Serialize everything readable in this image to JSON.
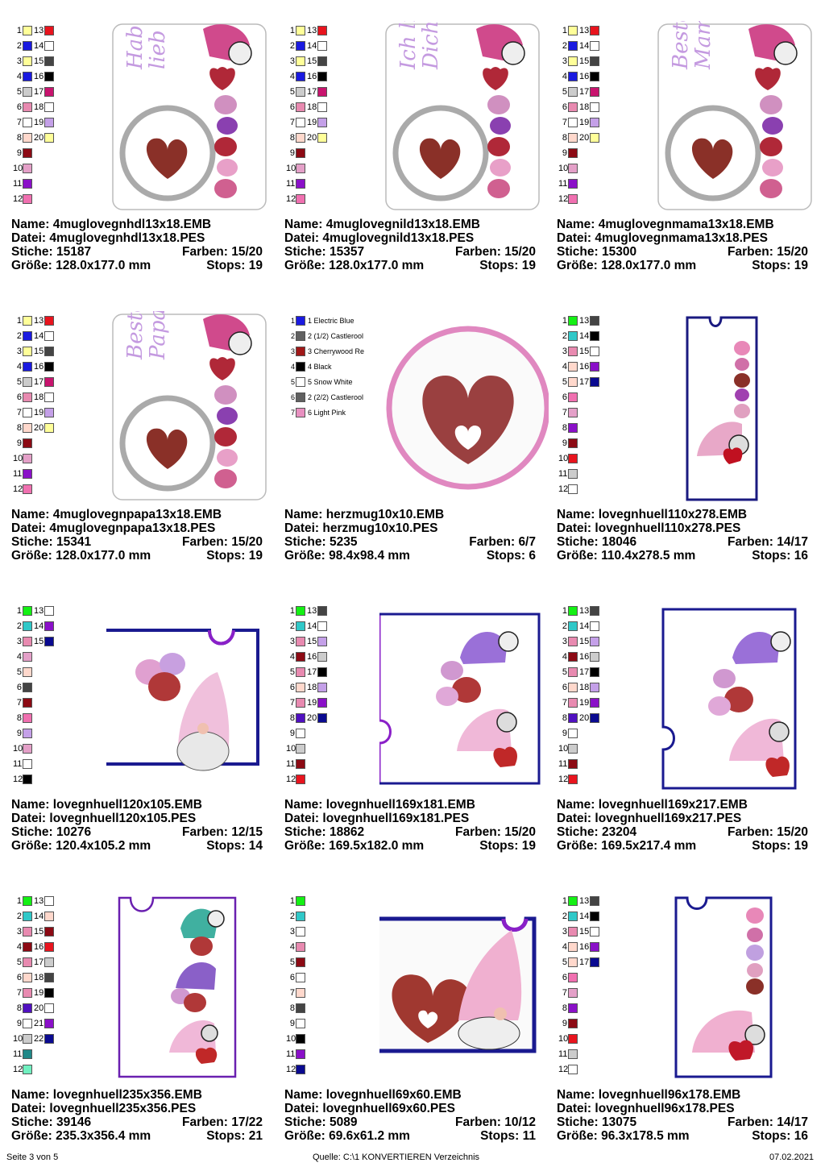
{
  "palette": {
    "red": "#e8141e",
    "blue": "#1a1ae0",
    "yellow": "#ffff99",
    "gray": "#444444",
    "black": "#000000",
    "lightgray": "#cccccc",
    "magenta": "#c8146e",
    "pink": "#e88ab0",
    "white": "#ffffff",
    "lavender": "#c4a0e8",
    "peach": "#ffd8cc",
    "darkred": "#8c0a14",
    "lightpink": "#e4a0c8",
    "purple": "#8a10c8",
    "hotpink": "#f070b0",
    "green": "#14f014",
    "teal": "#30c8c8",
    "navy": "#0a0a90",
    "darkgray": "#444444",
    "teal2": "#208888",
    "mint": "#70f0c0",
    "violet": "#5010c0",
    "castle": "#606060",
    "cherry": "#a01818",
    "lpink": "#e890c0"
  },
  "designs": [
    {
      "name_label": "Name:",
      "name": "4muglovegnhdl13x18.EMB",
      "file_label": "Datei:",
      "file": "4muglovegnhdl13x18.PES",
      "stitch_label": "Stiche:",
      "stitches": "15187",
      "color_label": "Farben:",
      "colors": "15/20",
      "size_label": "Größe:",
      "size": "128.0x177.0 mm",
      "stop_label": "Stops:",
      "stops": "19",
      "text": "Hab Dich lieb",
      "text1": "Hab Dich",
      "text2": "lieb",
      "swatches": [
        [
          "1",
          "yellow",
          "13",
          "red"
        ],
        [
          "2",
          "blue",
          "14",
          "white"
        ],
        [
          "3",
          "yellow",
          "15",
          "gray"
        ],
        [
          "4",
          "blue",
          "16",
          "black"
        ],
        [
          "5",
          "lightgray",
          "17",
          "magenta"
        ],
        [
          "6",
          "pink",
          "18",
          "white"
        ],
        [
          "7",
          "white",
          "19",
          "lavender"
        ],
        [
          "8",
          "peach",
          "20",
          "yellow"
        ],
        [
          "9",
          "darkred"
        ],
        [
          "10",
          "lightpink"
        ],
        [
          "11",
          "purple"
        ],
        [
          "12",
          "hotpink"
        ]
      ]
    },
    {
      "name_label": "Name:",
      "name": "4muglovegnild13x18.EMB",
      "file_label": "Datei:",
      "file": "4muglovegnild13x18.PES",
      "stitch_label": "Stiche:",
      "stitches": "15357",
      "color_label": "Farben:",
      "colors": "15/20",
      "size_label": "Größe:",
      "size": "128.0x177.0 mm",
      "stop_label": "Stops:",
      "stops": "19",
      "text1": "Ich liebe",
      "text2": "Dich",
      "swatches": [
        [
          "1",
          "yellow",
          "13",
          "red"
        ],
        [
          "2",
          "blue",
          "14",
          "white"
        ],
        [
          "3",
          "yellow",
          "15",
          "gray"
        ],
        [
          "4",
          "blue",
          "16",
          "black"
        ],
        [
          "5",
          "lightgray",
          "17",
          "magenta"
        ],
        [
          "6",
          "pink",
          "18",
          "white"
        ],
        [
          "7",
          "white",
          "19",
          "lavender"
        ],
        [
          "8",
          "peach",
          "20",
          "yellow"
        ],
        [
          "9",
          "darkred"
        ],
        [
          "10",
          "lightpink"
        ],
        [
          "11",
          "purple"
        ],
        [
          "12",
          "hotpink"
        ]
      ]
    },
    {
      "name_label": "Name:",
      "name": "4muglovegnmama13x18.EMB",
      "file_label": "Datei:",
      "file": "4muglovegnmama13x18.PES",
      "stitch_label": "Stiche:",
      "stitches": "15300",
      "color_label": "Farben:",
      "colors": "15/20",
      "size_label": "Größe:",
      "size": "128.0x177.0 mm",
      "stop_label": "Stops:",
      "stops": "19",
      "text1": "Beste",
      "text2": "Mama",
      "swatches": [
        [
          "1",
          "yellow",
          "13",
          "red"
        ],
        [
          "2",
          "blue",
          "14",
          "white"
        ],
        [
          "3",
          "yellow",
          "15",
          "gray"
        ],
        [
          "4",
          "blue",
          "16",
          "black"
        ],
        [
          "5",
          "lightgray",
          "17",
          "magenta"
        ],
        [
          "6",
          "pink",
          "18",
          "white"
        ],
        [
          "7",
          "white",
          "19",
          "lavender"
        ],
        [
          "8",
          "peach",
          "20",
          "yellow"
        ],
        [
          "9",
          "darkred"
        ],
        [
          "10",
          "lightpink"
        ],
        [
          "11",
          "purple"
        ],
        [
          "12",
          "hotpink"
        ]
      ]
    },
    {
      "name_label": "Name:",
      "name": "4muglovegnpapa13x18.EMB",
      "file_label": "Datei:",
      "file": "4muglovegnpapa13x18.PES",
      "stitch_label": "Stiche:",
      "stitches": "15341",
      "color_label": "Farben:",
      "colors": "15/20",
      "size_label": "Größe:",
      "size": "128.0x177.0 mm",
      "stop_label": "Stops:",
      "stops": "19",
      "text1": "Bester",
      "text2": "Papa",
      "swatches": [
        [
          "1",
          "yellow",
          "13",
          "red"
        ],
        [
          "2",
          "blue",
          "14",
          "white"
        ],
        [
          "3",
          "yellow",
          "15",
          "gray"
        ],
        [
          "4",
          "blue",
          "16",
          "black"
        ],
        [
          "5",
          "lightgray",
          "17",
          "magenta"
        ],
        [
          "6",
          "pink",
          "18",
          "white"
        ],
        [
          "7",
          "white",
          "19",
          "lavender"
        ],
        [
          "8",
          "peach",
          "20",
          "yellow"
        ],
        [
          "9",
          "darkred"
        ],
        [
          "10",
          "lightpink"
        ],
        [
          "11",
          "purple"
        ],
        [
          "12",
          "hotpink"
        ]
      ]
    },
    {
      "name_label": "Name:",
      "name": "herzmug10x10.EMB",
      "file_label": "Datei:",
      "file": "herzmug10x10.PES",
      "stitch_label": "Stiche:",
      "stitches": "5235",
      "color_label": "Farben:",
      "colors": "6/7",
      "size_label": "Größe:",
      "size": "98.4x98.4 mm",
      "stop_label": "Stops:",
      "stops": "6",
      "legend": [
        [
          "1",
          "blue",
          "1 Electric Blue"
        ],
        [
          "2",
          "castle",
          "2 (1/2) Castlerool"
        ],
        [
          "3",
          "cherry",
          "3 Cherrywood Re"
        ],
        [
          "4",
          "black",
          "4 Black"
        ],
        [
          "5",
          "white",
          "5 Snow White"
        ],
        [
          "6",
          "castle",
          "2 (2/2) Castlerool"
        ],
        [
          "7",
          "lpink",
          "6 Light Pink"
        ]
      ]
    },
    {
      "name_label": "Name:",
      "name": "lovegnhuell110x278.EMB",
      "file_label": "Datei:",
      "file": "lovegnhuell110x278.PES",
      "stitch_label": "Stiche:",
      "stitches": "18046",
      "color_label": "Farben:",
      "colors": "14/17",
      "size_label": "Größe:",
      "size": "110.4x278.5 mm",
      "stop_label": "Stops:",
      "stops": "16",
      "swatches": [
        [
          "1",
          "green",
          "13",
          "darkgray"
        ],
        [
          "2",
          "teal",
          "14",
          "black"
        ],
        [
          "3",
          "pink",
          "15",
          "white"
        ],
        [
          "4",
          "peach",
          "16",
          "purple"
        ],
        [
          "5",
          "peach",
          "17",
          "navy"
        ],
        [
          "6",
          "hotpink"
        ],
        [
          "7",
          "lightpink"
        ],
        [
          "8",
          "purple"
        ],
        [
          "9",
          "darkred"
        ],
        [
          "10",
          "red"
        ],
        [
          "11",
          "lightgray"
        ],
        [
          "12",
          "white"
        ]
      ]
    },
    {
      "name_label": "Name:",
      "name": "lovegnhuell120x105.EMB",
      "file_label": "Datei:",
      "file": "lovegnhuell120x105.PES",
      "stitch_label": "Stiche:",
      "stitches": "10276",
      "color_label": "Farben:",
      "colors": "12/15",
      "size_label": "Größe:",
      "size": "120.4x105.2 mm",
      "stop_label": "Stops:",
      "stops": "14",
      "swatches": [
        [
          "1",
          "green",
          "13",
          "white"
        ],
        [
          "2",
          "teal",
          "14",
          "purple"
        ],
        [
          "3",
          "pink",
          "15",
          "navy"
        ],
        [
          "4",
          "lightpink"
        ],
        [
          "5",
          "peach"
        ],
        [
          "6",
          "darkgray"
        ],
        [
          "7",
          "darkred"
        ],
        [
          "8",
          "hotpink"
        ],
        [
          "9",
          "lavender"
        ],
        [
          "10",
          "lightpink"
        ],
        [
          "11",
          "white"
        ],
        [
          "12",
          "black"
        ]
      ]
    },
    {
      "name_label": "Name:",
      "name": "lovegnhuell169x181.EMB",
      "file_label": "Datei:",
      "file": "lovegnhuell169x181.PES",
      "stitch_label": "Stiche:",
      "stitches": "18862",
      "color_label": "Farben:",
      "colors": "15/20",
      "size_label": "Größe:",
      "size": "169.5x182.0 mm",
      "stop_label": "Stops:",
      "stops": "19",
      "swatches": [
        [
          "1",
          "green",
          "13",
          "darkgray"
        ],
        [
          "2",
          "teal",
          "14",
          "white"
        ],
        [
          "3",
          "pink",
          "15",
          "lavender"
        ],
        [
          "4",
          "darkred",
          "16",
          "lightgray"
        ],
        [
          "5",
          "pink",
          "17",
          "black"
        ],
        [
          "6",
          "peach",
          "18",
          "lavender"
        ],
        [
          "7",
          "pink",
          "19",
          "purple"
        ],
        [
          "8",
          "violet",
          "20",
          "navy"
        ],
        [
          "9",
          "white"
        ],
        [
          "10",
          "lightgray"
        ],
        [
          "11",
          "darkred"
        ],
        [
          "12",
          "red"
        ]
      ]
    },
    {
      "name_label": "Name:",
      "name": "lovegnhuell169x217.EMB",
      "file_label": "Datei:",
      "file": "lovegnhuell169x217.PES",
      "stitch_label": "Stiche:",
      "stitches": "23204",
      "color_label": "Farben:",
      "colors": "15/20",
      "size_label": "Größe:",
      "size": "169.5x217.4 mm",
      "stop_label": "Stops:",
      "stops": "19",
      "swatches": [
        [
          "1",
          "green",
          "13",
          "darkgray"
        ],
        [
          "2",
          "teal",
          "14",
          "white"
        ],
        [
          "3",
          "pink",
          "15",
          "lavender"
        ],
        [
          "4",
          "darkred",
          "16",
          "lightgray"
        ],
        [
          "5",
          "pink",
          "17",
          "black"
        ],
        [
          "6",
          "peach",
          "18",
          "lavender"
        ],
        [
          "7",
          "pink",
          "19",
          "purple"
        ],
        [
          "8",
          "violet",
          "20",
          "navy"
        ],
        [
          "9",
          "white"
        ],
        [
          "10",
          "lightgray"
        ],
        [
          "11",
          "darkred"
        ],
        [
          "12",
          "red"
        ]
      ]
    },
    {
      "name_label": "Name:",
      "name": "lovegnhuell235x356.EMB",
      "file_label": "Datei:",
      "file": "lovegnhuell235x356.PES",
      "stitch_label": "Stiche:",
      "stitches": "39146",
      "color_label": "Farben:",
      "colors": "17/22",
      "size_label": "Größe:",
      "size": "235.3x356.4 mm",
      "stop_label": "Stops:",
      "stops": "21",
      "swatches": [
        [
          "1",
          "green",
          "13",
          "white"
        ],
        [
          "2",
          "teal",
          "14",
          "peach"
        ],
        [
          "3",
          "pink",
          "15",
          "darkred"
        ],
        [
          "4",
          "darkred",
          "16",
          "red"
        ],
        [
          "5",
          "pink",
          "17",
          "lightgray"
        ],
        [
          "6",
          "peach",
          "18",
          "darkgray"
        ],
        [
          "7",
          "pink",
          "19",
          "black"
        ],
        [
          "8",
          "violet",
          "20",
          "white"
        ],
        [
          "9",
          "white",
          "21",
          "purple"
        ],
        [
          "10",
          "lightgray",
          "22",
          "navy"
        ],
        [
          "11",
          "teal2"
        ],
        [
          "12",
          "mint"
        ]
      ]
    },
    {
      "name_label": "Name:",
      "name": "lovegnhuell69x60.EMB",
      "file_label": "Datei:",
      "file": "lovegnhuell69x60.PES",
      "stitch_label": "Stiche:",
      "stitches": "5089",
      "color_label": "Farben:",
      "colors": "10/12",
      "size_label": "Größe:",
      "size": "69.6x61.2 mm",
      "stop_label": "Stops:",
      "stops": "11",
      "swatches": [
        [
          "1",
          "green"
        ],
        [
          "2",
          "teal"
        ],
        [
          "3",
          "white"
        ],
        [
          "4",
          "pink"
        ],
        [
          "5",
          "darkred"
        ],
        [
          "6",
          "white"
        ],
        [
          "7",
          "peach"
        ],
        [
          "8",
          "darkgray"
        ],
        [
          "9",
          "white"
        ],
        [
          "10",
          "black"
        ],
        [
          "11",
          "purple"
        ],
        [
          "12",
          "navy"
        ]
      ]
    },
    {
      "name_label": "Name:",
      "name": "lovegnhuell96x178.EMB",
      "file_label": "Datei:",
      "file": "lovegnhuell96x178.PES",
      "stitch_label": "Stiche:",
      "stitches": "13075",
      "color_label": "Farben:",
      "colors": "14/17",
      "size_label": "Größe:",
      "size": "96.3x178.5 mm",
      "stop_label": "Stops:",
      "stops": "16",
      "swatches": [
        [
          "1",
          "green",
          "13",
          "darkgray"
        ],
        [
          "2",
          "teal",
          "14",
          "black"
        ],
        [
          "3",
          "pink",
          "15",
          "white"
        ],
        [
          "4",
          "peach",
          "16",
          "purple"
        ],
        [
          "5",
          "peach",
          "17",
          "navy"
        ],
        [
          "6",
          "hotpink"
        ],
        [
          "7",
          "lightpink"
        ],
        [
          "8",
          "purple"
        ],
        [
          "9",
          "darkred"
        ],
        [
          "10",
          "red"
        ],
        [
          "11",
          "lightgray"
        ],
        [
          "12",
          "white"
        ]
      ]
    }
  ],
  "footer": {
    "page": "Seite 3 von 5",
    "source": "Quelle: C:\\1 KONVERTIEREN Verzeichnis",
    "date": "07.02.2021"
  }
}
